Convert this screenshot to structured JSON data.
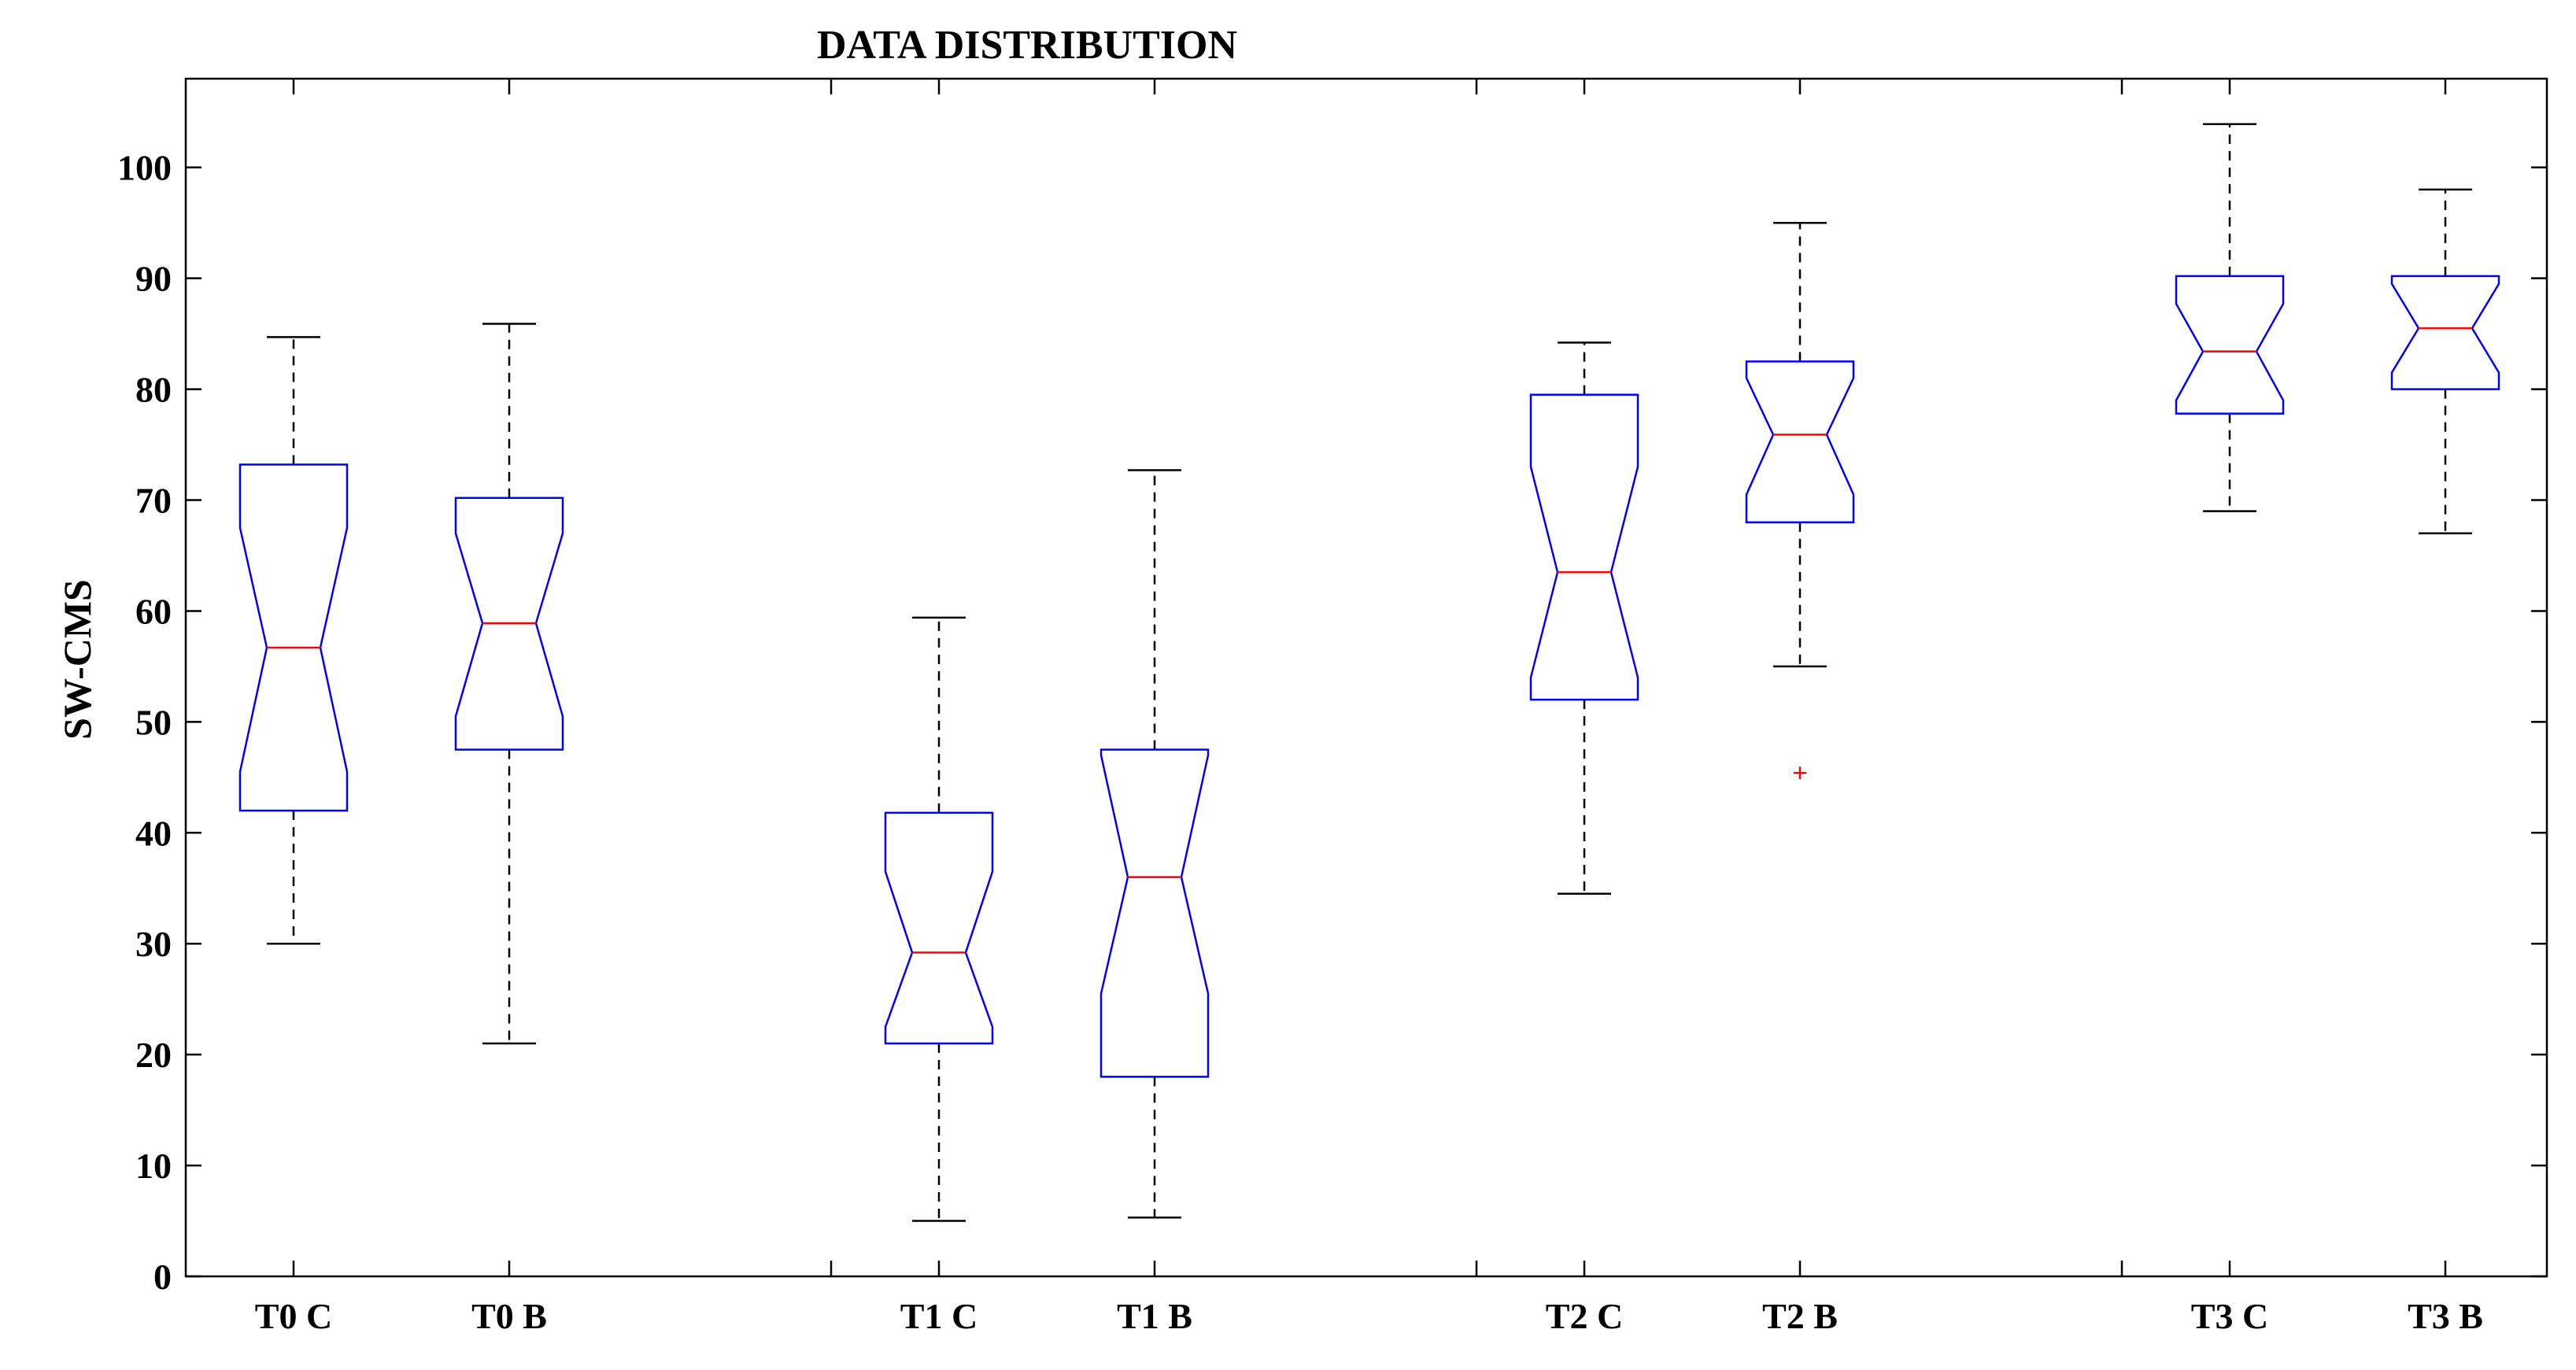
{
  "chart_data": {
    "type": "boxplot",
    "title": "DATA DISTRIBUTION",
    "xlabel": "",
    "ylabel": "SW-CMS",
    "ylim": [
      0,
      108
    ],
    "yticks": [
      0,
      10,
      20,
      30,
      40,
      50,
      60,
      70,
      80,
      90,
      100
    ],
    "notched": true,
    "grid": false,
    "colors": {
      "box": "#0000ff",
      "median": "#ff0000",
      "whisker": "#000000",
      "outlier": "#ff0000"
    },
    "groups": [
      {
        "label": "T0 C",
        "group": 0,
        "whisker_low": 30,
        "q1": 42,
        "median": 56.7,
        "q3": 73.2,
        "whisker_high": 84.7,
        "notch_low": 45.5,
        "notch_high": 67.5,
        "outliers": []
      },
      {
        "label": "T0 B",
        "group": 0,
        "whisker_low": 21,
        "q1": 47.5,
        "median": 58.9,
        "q3": 70.2,
        "whisker_high": 85.9,
        "notch_low": 50.5,
        "notch_high": 67,
        "outliers": []
      },
      {
        "label": "T1 C",
        "group": 1,
        "whisker_low": 5,
        "q1": 21,
        "median": 29.2,
        "q3": 41.8,
        "whisker_high": 59.4,
        "notch_low": 22.5,
        "notch_high": 36.5,
        "outliers": []
      },
      {
        "label": "T1 B",
        "group": 1,
        "whisker_low": 5.3,
        "q1": 18,
        "median": 36,
        "q3": 47.5,
        "whisker_high": 72.7,
        "notch_low": 25.5,
        "notch_high": 47,
        "outliers": []
      },
      {
        "label": "T2 C",
        "group": 2,
        "whisker_low": 34.5,
        "q1": 52,
        "median": 63.5,
        "q3": 79.5,
        "whisker_high": 84.2,
        "notch_low": 54,
        "notch_high": 73,
        "outliers": []
      },
      {
        "label": "T2 B",
        "group": 2,
        "whisker_low": 55,
        "q1": 68,
        "median": 75.9,
        "q3": 82.5,
        "whisker_high": 95,
        "notch_low": 70.5,
        "notch_high": 81,
        "outliers": [
          45.4
        ]
      },
      {
        "label": "T3 C",
        "group": 3,
        "whisker_low": 69,
        "q1": 77.8,
        "median": 83.4,
        "q3": 90.2,
        "whisker_high": 103.9,
        "notch_low": 79,
        "notch_high": 87.7,
        "outliers": []
      },
      {
        "label": "T3 B",
        "group": 3,
        "whisker_low": 67,
        "q1": 80,
        "median": 85.5,
        "q3": 90.2,
        "whisker_high": 98,
        "notch_low": 81.5,
        "notch_high": 89.5,
        "outliers": []
      }
    ]
  }
}
